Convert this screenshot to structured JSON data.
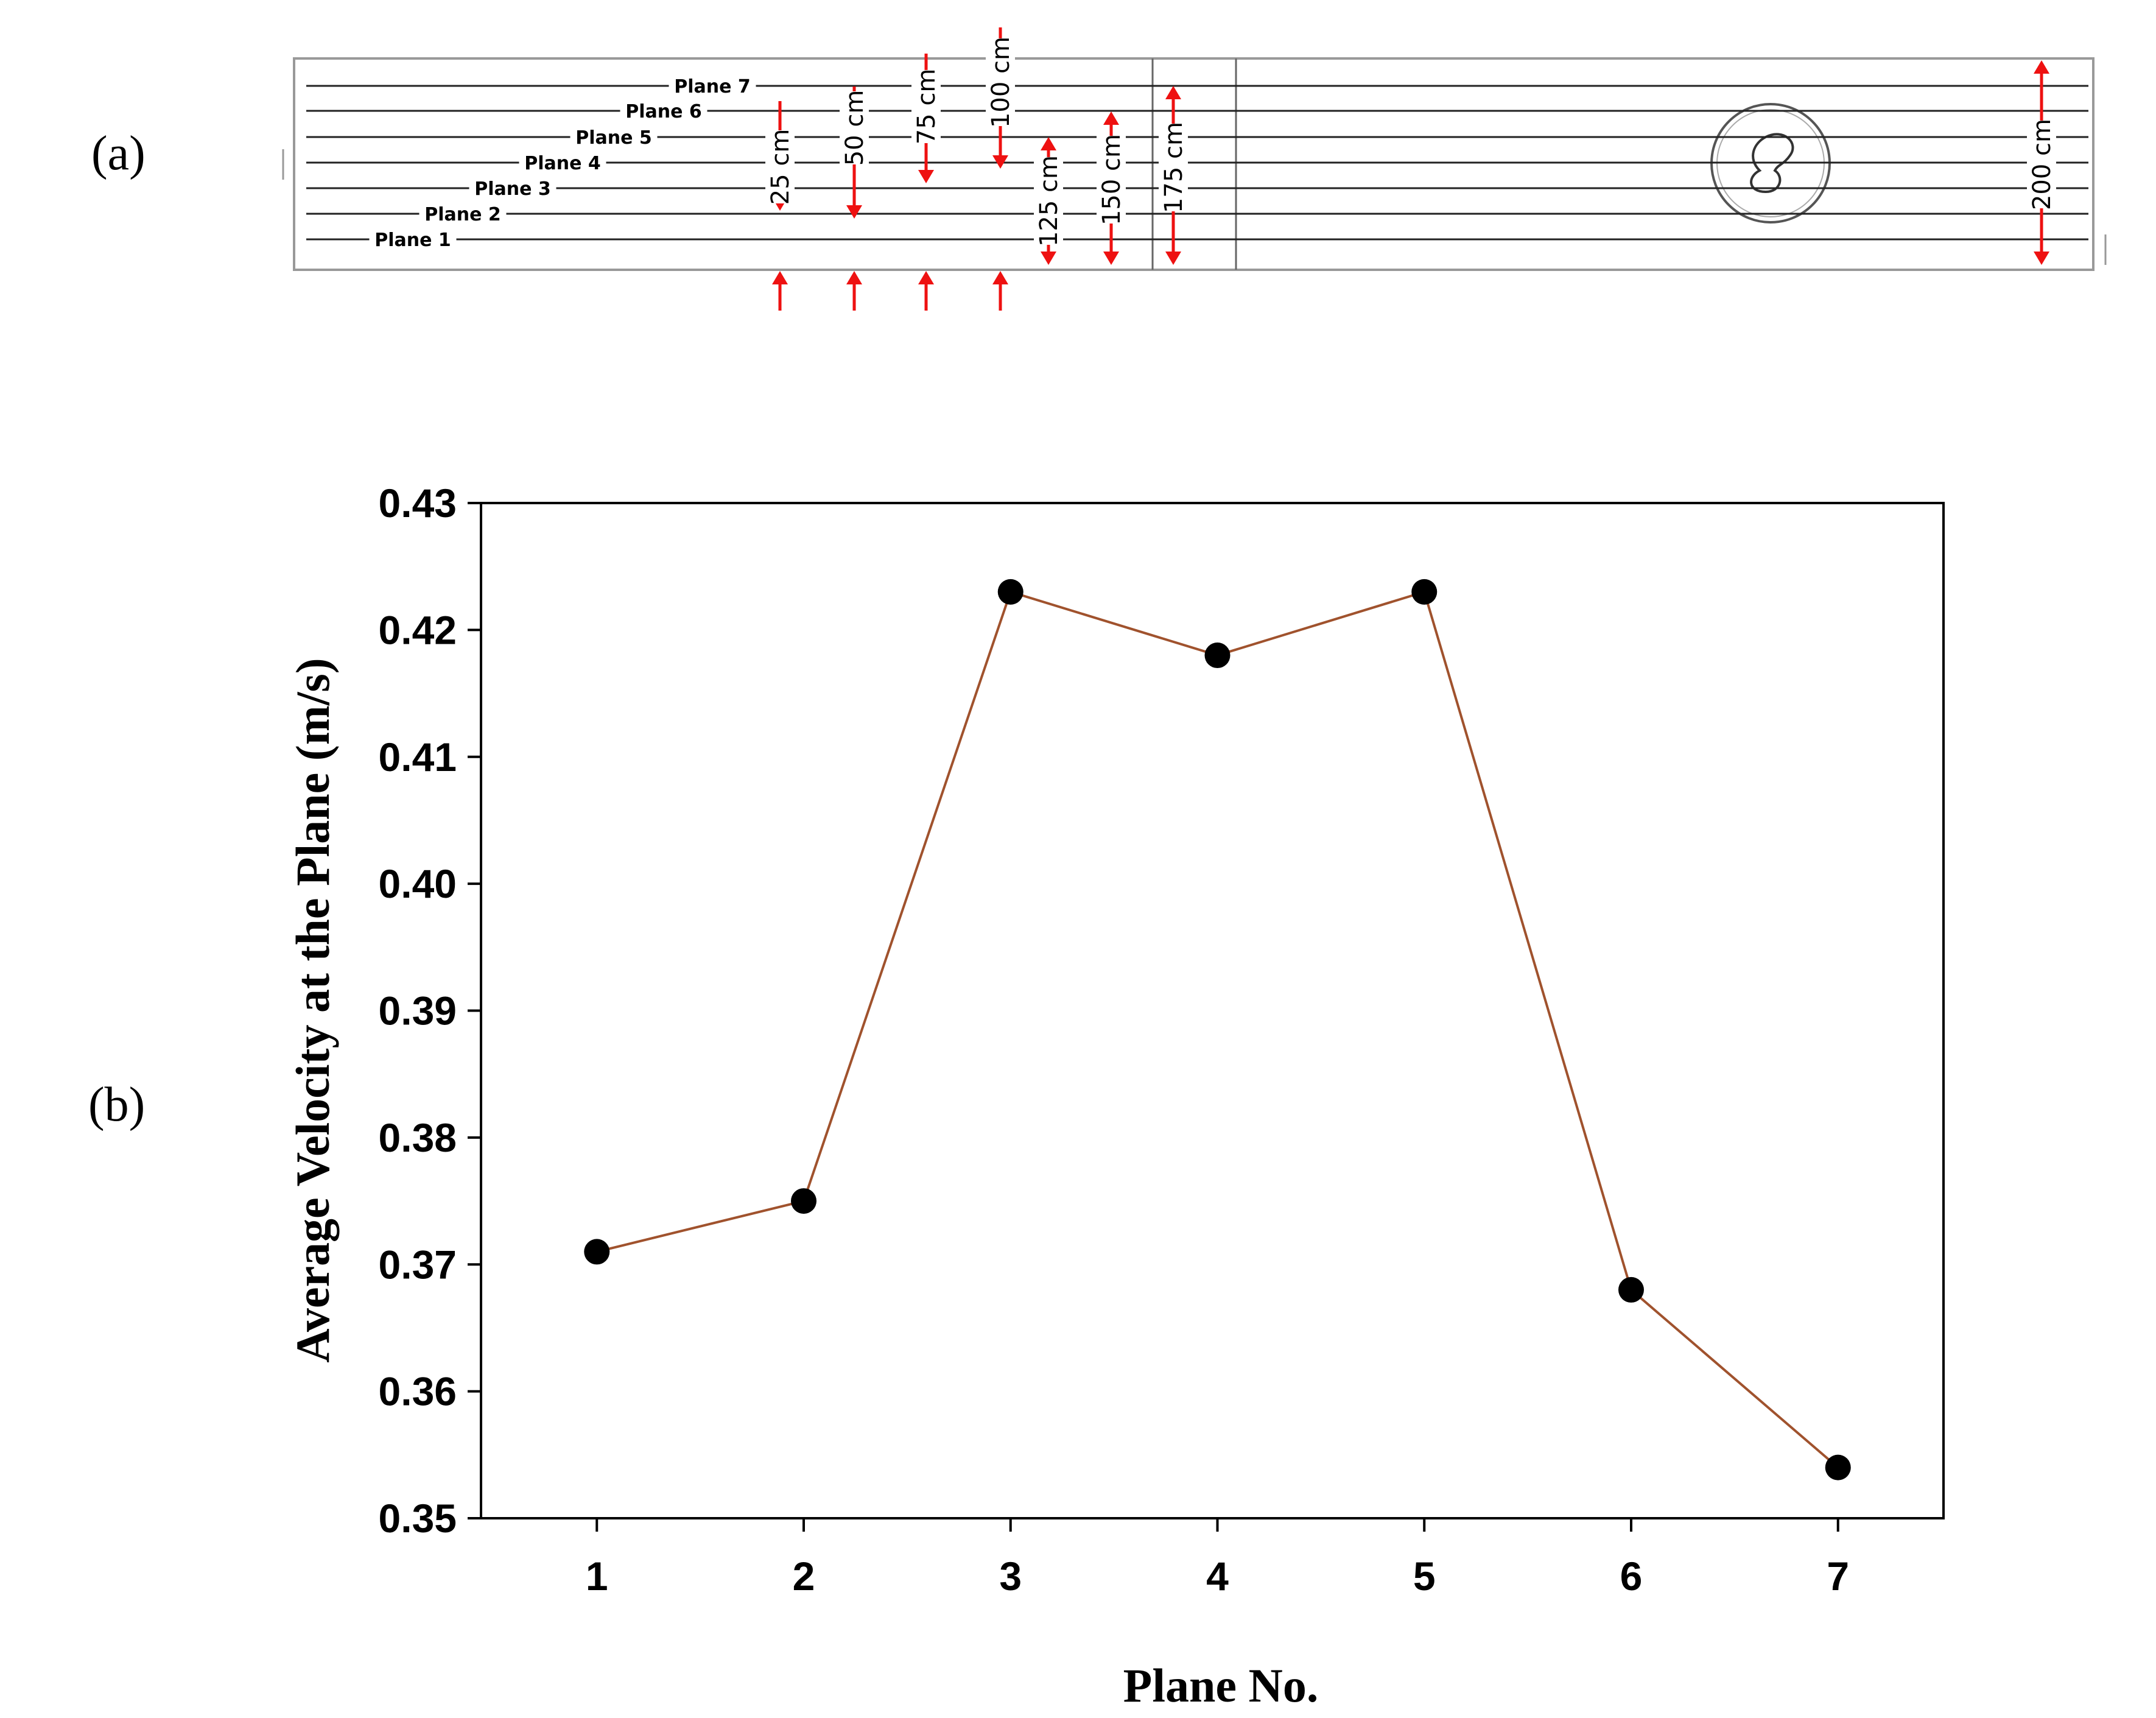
{
  "panel_a": {
    "label": "(a)",
    "planes": [
      "Plane 1",
      "Plane 2",
      "Plane 3",
      "Plane 4",
      "Plane 5",
      "Plane 6",
      "Plane 7"
    ],
    "distances": [
      {
        "label": "25 cm",
        "cm": 25
      },
      {
        "label": "50 cm",
        "cm": 50
      },
      {
        "label": "75 cm",
        "cm": 75
      },
      {
        "label": "100 cm",
        "cm": 100
      },
      {
        "label": "125 cm",
        "cm": 125
      },
      {
        "label": "150 cm",
        "cm": 150
      },
      {
        "label": "175 cm",
        "cm": 175
      },
      {
        "label": "200 cm",
        "cm": 200
      }
    ],
    "arrow_color": "#ee1111"
  },
  "panel_b": {
    "label": "(b)"
  },
  "chart_data": {
    "type": "line",
    "title": "",
    "xlabel": "Plane No.",
    "ylabel": "Average Velocity at the Plane (m/s)",
    "x": [
      1,
      2,
      3,
      4,
      5,
      6,
      7
    ],
    "x_tick_labels": [
      "1",
      "2",
      "3",
      "4",
      "5",
      "6",
      "7"
    ],
    "xlim": [
      0.44,
      7.51
    ],
    "ylim": [
      0.35,
      0.43
    ],
    "y_ticks": [
      0.35,
      0.36,
      0.37,
      0.38,
      0.39,
      0.4,
      0.41,
      0.42,
      0.43
    ],
    "y_tick_labels": [
      "0.35",
      "0.36",
      "0.37",
      "0.38",
      "0.39",
      "0.40",
      "0.41",
      "0.42",
      "0.43"
    ],
    "grid": false,
    "legend": "none",
    "series": [
      {
        "name": "Average velocity",
        "values": [
          0.371,
          0.375,
          0.423,
          0.418,
          0.423,
          0.368,
          0.354
        ],
        "line_color": "#a0522d",
        "marker_color": "#000000"
      }
    ]
  }
}
